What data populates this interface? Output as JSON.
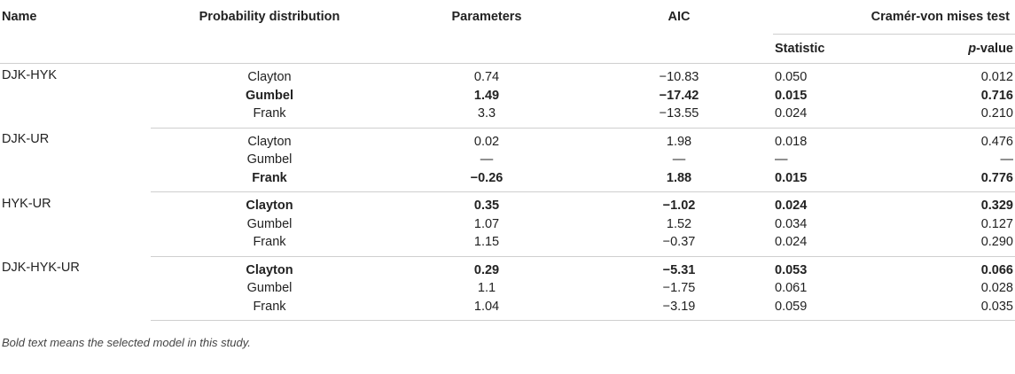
{
  "headers": {
    "name": "Name",
    "distribution": "Probability distribution",
    "parameters": "Parameters",
    "aic": "AIC",
    "cvm": "Cramér-von mises test",
    "statistic": "Statistic",
    "p_prefix": "p",
    "p_suffix": "-value"
  },
  "groups": [
    {
      "name": "DJK-HYK",
      "rows": [
        {
          "dist": "Clayton",
          "param": "0.74",
          "aic": "−10.83",
          "stat": "0.050",
          "p": "0.012",
          "bold": false
        },
        {
          "dist": "Gumbel",
          "param": "1.49",
          "aic": "−17.42",
          "stat": "0.015",
          "p": "0.716",
          "bold": true
        },
        {
          "dist": "Frank",
          "param": "3.3",
          "aic": "−13.55",
          "stat": "0.024",
          "p": "0.210",
          "bold": false
        }
      ]
    },
    {
      "name": "DJK-UR",
      "rows": [
        {
          "dist": "Clayton",
          "param": "0.02",
          "aic": "1.98",
          "stat": "0.018",
          "p": "0.476",
          "bold": false
        },
        {
          "dist": "Gumbel",
          "param": "—",
          "aic": "—",
          "stat": "—",
          "p": "—",
          "bold": false
        },
        {
          "dist": "Frank",
          "param": "−0.26",
          "aic": "1.88",
          "stat": "0.015",
          "p": "0.776",
          "bold": true
        }
      ]
    },
    {
      "name": "HYK-UR",
      "rows": [
        {
          "dist": "Clayton",
          "param": "0.35",
          "aic": "−1.02",
          "stat": "0.024",
          "p": "0.329",
          "bold": true
        },
        {
          "dist": "Gumbel",
          "param": "1.07",
          "aic": "1.52",
          "stat": "0.034",
          "p": "0.127",
          "bold": false
        },
        {
          "dist": "Frank",
          "param": "1.15",
          "aic": "−0.37",
          "stat": "0.024",
          "p": "0.290",
          "bold": false
        }
      ]
    },
    {
      "name": "DJK-HYK-UR",
      "rows": [
        {
          "dist": "Clayton",
          "param": "0.29",
          "aic": "−5.31",
          "stat": "0.053",
          "p": "0.066",
          "bold": true
        },
        {
          "dist": "Gumbel",
          "param": "1.1",
          "aic": "−1.75",
          "stat": "0.061",
          "p": "0.028",
          "bold": false
        },
        {
          "dist": "Frank",
          "param": "1.04",
          "aic": "−3.19",
          "stat": "0.059",
          "p": "0.035",
          "bold": false
        }
      ]
    }
  ],
  "footnote": "Bold text means the selected model in this study."
}
